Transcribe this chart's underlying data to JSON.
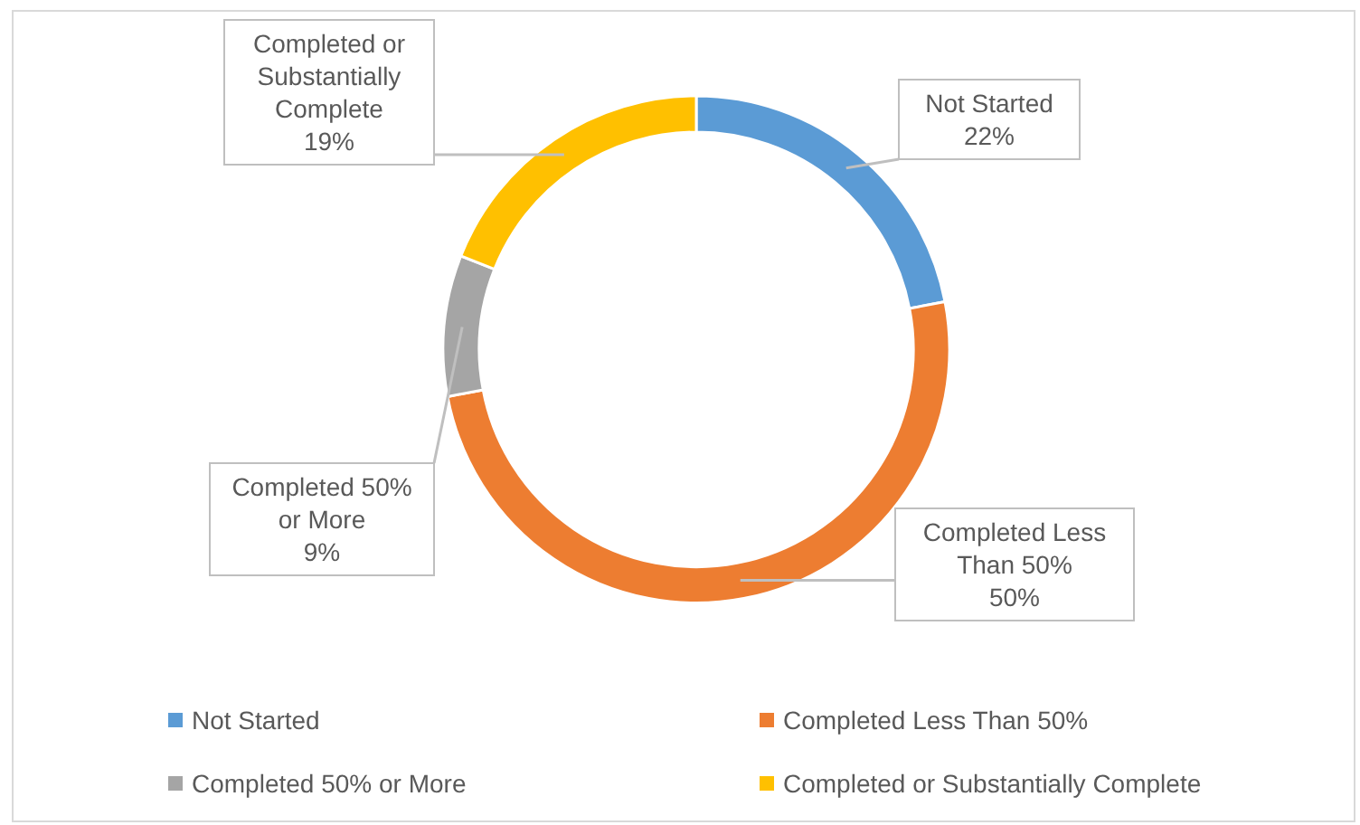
{
  "chart_data": {
    "type": "donut",
    "categories": [
      "Not Started",
      "Completed Less Than 50%",
      "Completed 50% or More",
      "Completed or Substantially Complete"
    ],
    "values": [
      22,
      50,
      9,
      19
    ],
    "colors": [
      "#5b9bd5",
      "#ed7d31",
      "#a5a5a5",
      "#ffc000"
    ],
    "value_labels": [
      "22%",
      "50%",
      "9%",
      "19%"
    ],
    "legend": "bottom"
  }
}
